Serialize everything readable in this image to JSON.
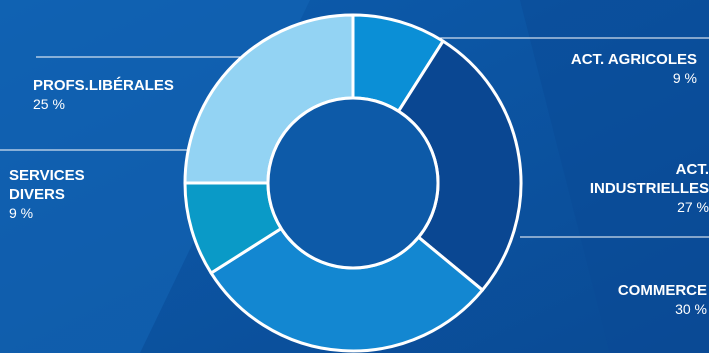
{
  "chart_data": {
    "type": "pie",
    "donut": true,
    "slices": [
      {
        "category": "ACT. AGRICOLES",
        "value": 9,
        "label": "9 %",
        "color": "#0b8fd6"
      },
      {
        "category": "ACT. INDUSTRIELLES",
        "value": 27,
        "label": "27 %",
        "color": "#0a4792"
      },
      {
        "category": "COMMERCE",
        "value": 30,
        "label": "30 %",
        "color": "#1387d1"
      },
      {
        "category": "SERVICES DIVERS",
        "value": 9,
        "label": "9 %",
        "color": "#0a9ac7"
      },
      {
        "category": "PROFS.LIBÉRALES",
        "value": 25,
        "label": "25 %",
        "color": "#93d3f3"
      }
    ],
    "legend": "labels-around-chart"
  },
  "colors": {
    "background": "#0f5cae",
    "center": "#0d5aa8",
    "stroke": "#ffffff"
  }
}
